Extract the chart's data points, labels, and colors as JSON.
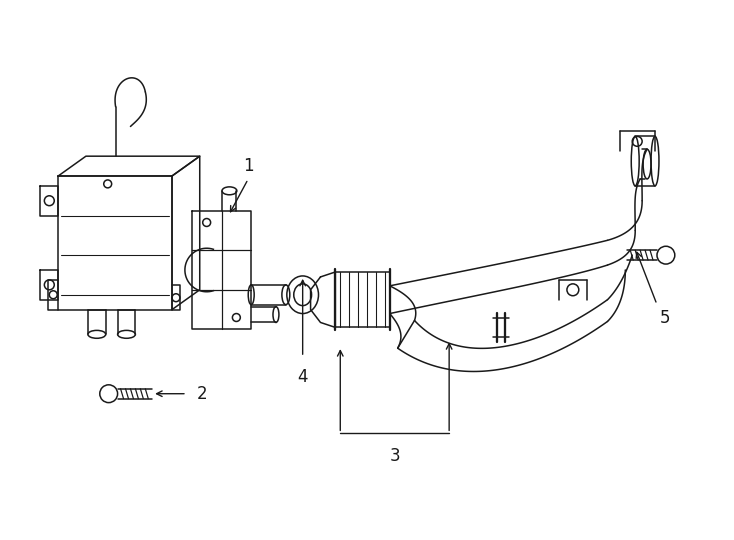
{
  "bg_color": "#ffffff",
  "line_color": "#1a1a1a",
  "line_width": 1.1,
  "fig_width": 7.34,
  "fig_height": 5.4,
  "dpi": 100
}
